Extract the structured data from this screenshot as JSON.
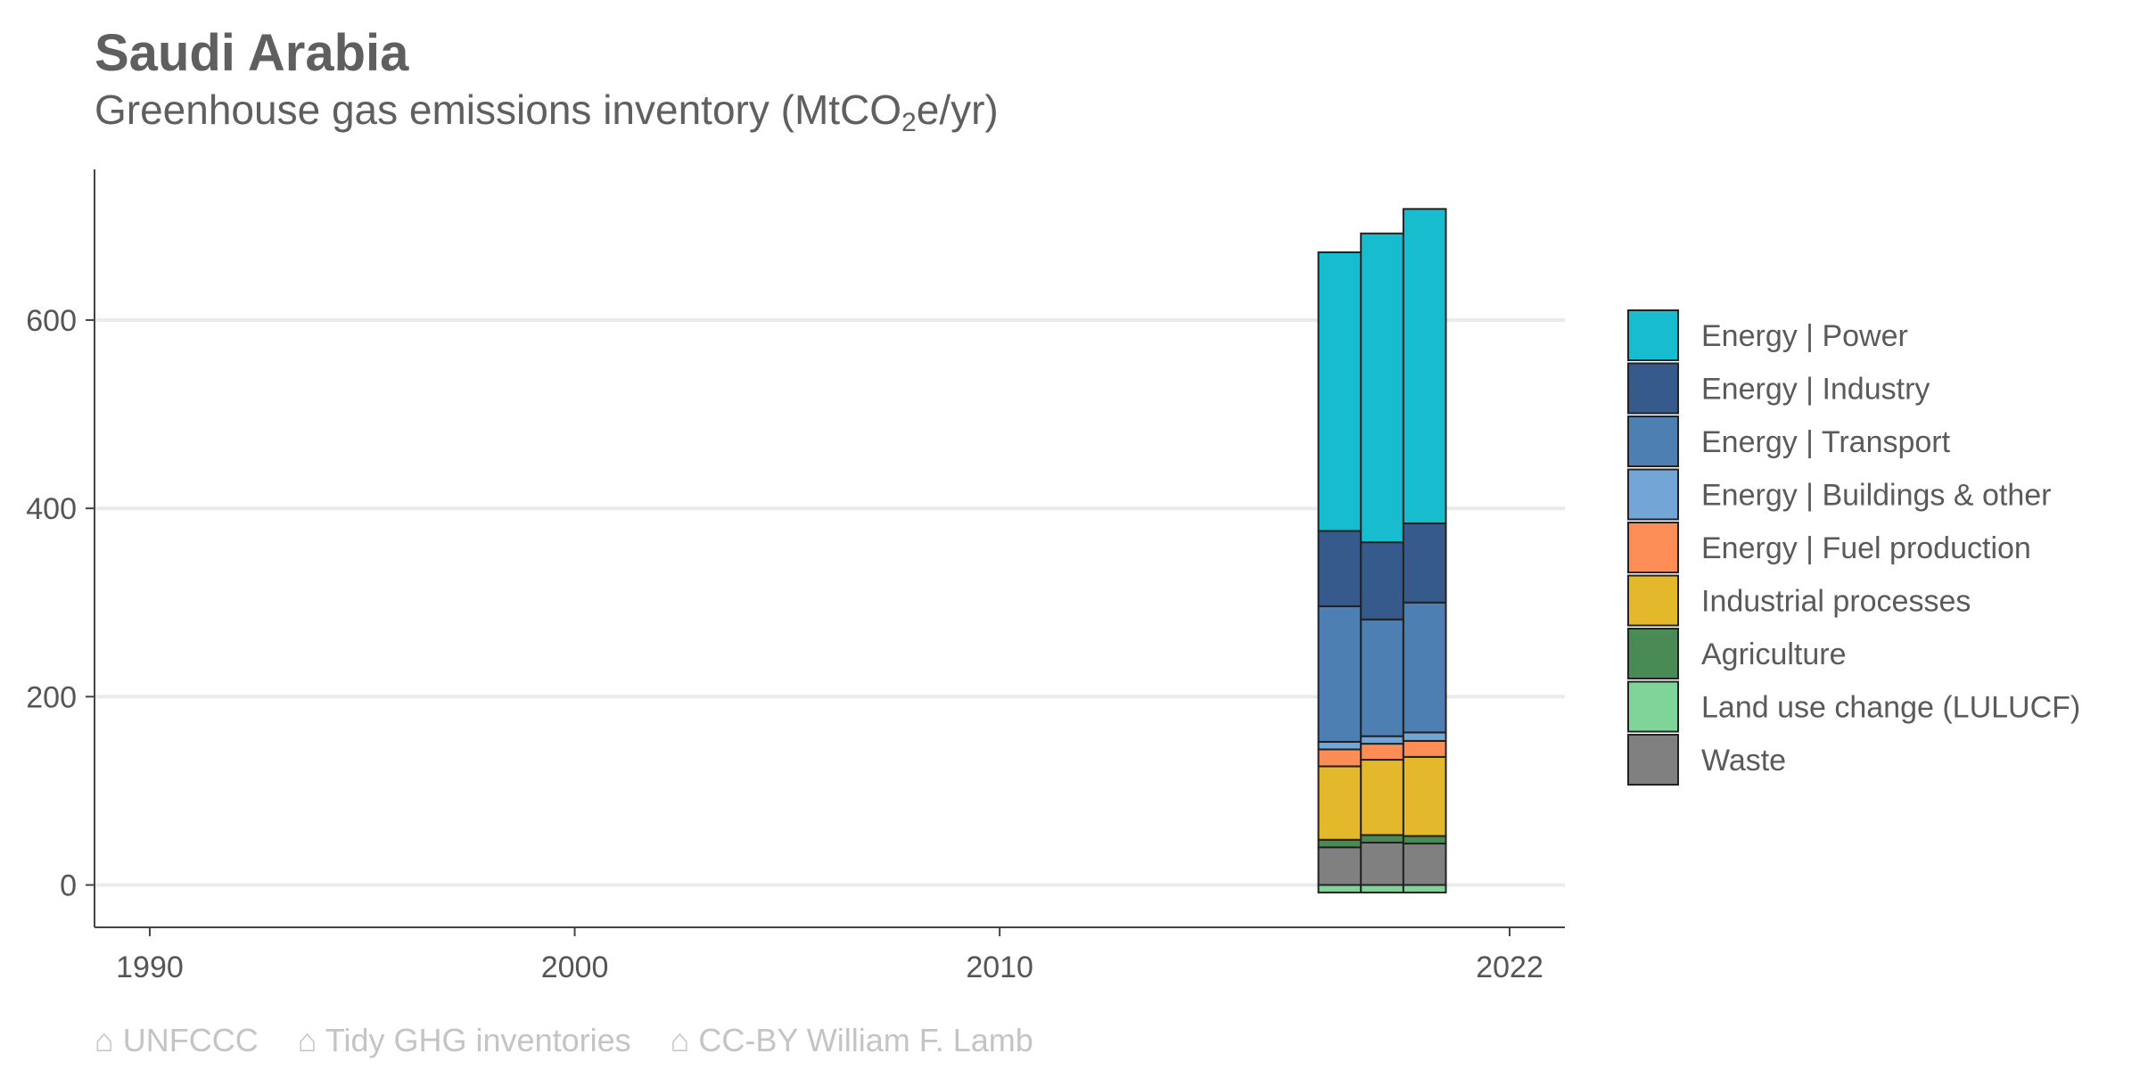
{
  "title": "Saudi Arabia",
  "subtitle_main": "Greenhouse gas emissions inventory (MtCO",
  "subtitle_sub": "2",
  "subtitle_tail": "e/yr)",
  "footer": {
    "source1": "⌂ UNFCCC",
    "source2": "⌂ Tidy GHG inventories",
    "source3": "⌂ CC-BY William F. Lamb"
  },
  "chart_data": {
    "type": "bar",
    "stacked": true,
    "x": [
      2018,
      2019,
      2020
    ],
    "xlim": [
      1988.7,
      2023.3
    ],
    "ylim": [
      -45,
      760
    ],
    "x_ticks": [
      1990,
      2000,
      2010,
      2022
    ],
    "y_ticks": [
      0,
      200,
      400,
      600
    ],
    "grid": "horizontal",
    "legend_position": "right",
    "series": [
      {
        "name": "Land use change (LULUCF)",
        "color": "#7fd49a",
        "values": [
          -8,
          -8,
          -8
        ]
      },
      {
        "name": "Waste",
        "color": "#808080",
        "values": [
          40,
          45,
          44
        ]
      },
      {
        "name": "Agriculture",
        "color": "#4a8a55",
        "values": [
          8,
          8,
          8
        ]
      },
      {
        "name": "Industrial processes",
        "color": "#e3b82b",
        "values": [
          78,
          80,
          84
        ]
      },
      {
        "name": "Energy | Fuel production",
        "color": "#fd8d56",
        "values": [
          18,
          17,
          17
        ]
      },
      {
        "name": "Energy | Buildings & other",
        "color": "#73a6d6",
        "values": [
          8,
          8,
          9
        ]
      },
      {
        "name": "Energy | Transport",
        "color": "#4e7fb3",
        "values": [
          144,
          124,
          138
        ]
      },
      {
        "name": "Energy | Industry",
        "color": "#365a8c",
        "values": [
          80,
          82,
          84
        ]
      },
      {
        "name": "Energy | Power",
        "color": "#17bcce",
        "values": [
          296,
          328,
          334
        ]
      }
    ],
    "legend_order": [
      "Energy | Power",
      "Energy | Industry",
      "Energy | Transport",
      "Energy | Buildings & other",
      "Energy | Fuel production",
      "Industrial processes",
      "Agriculture",
      "Land use change (LULUCF)",
      "Waste"
    ]
  }
}
